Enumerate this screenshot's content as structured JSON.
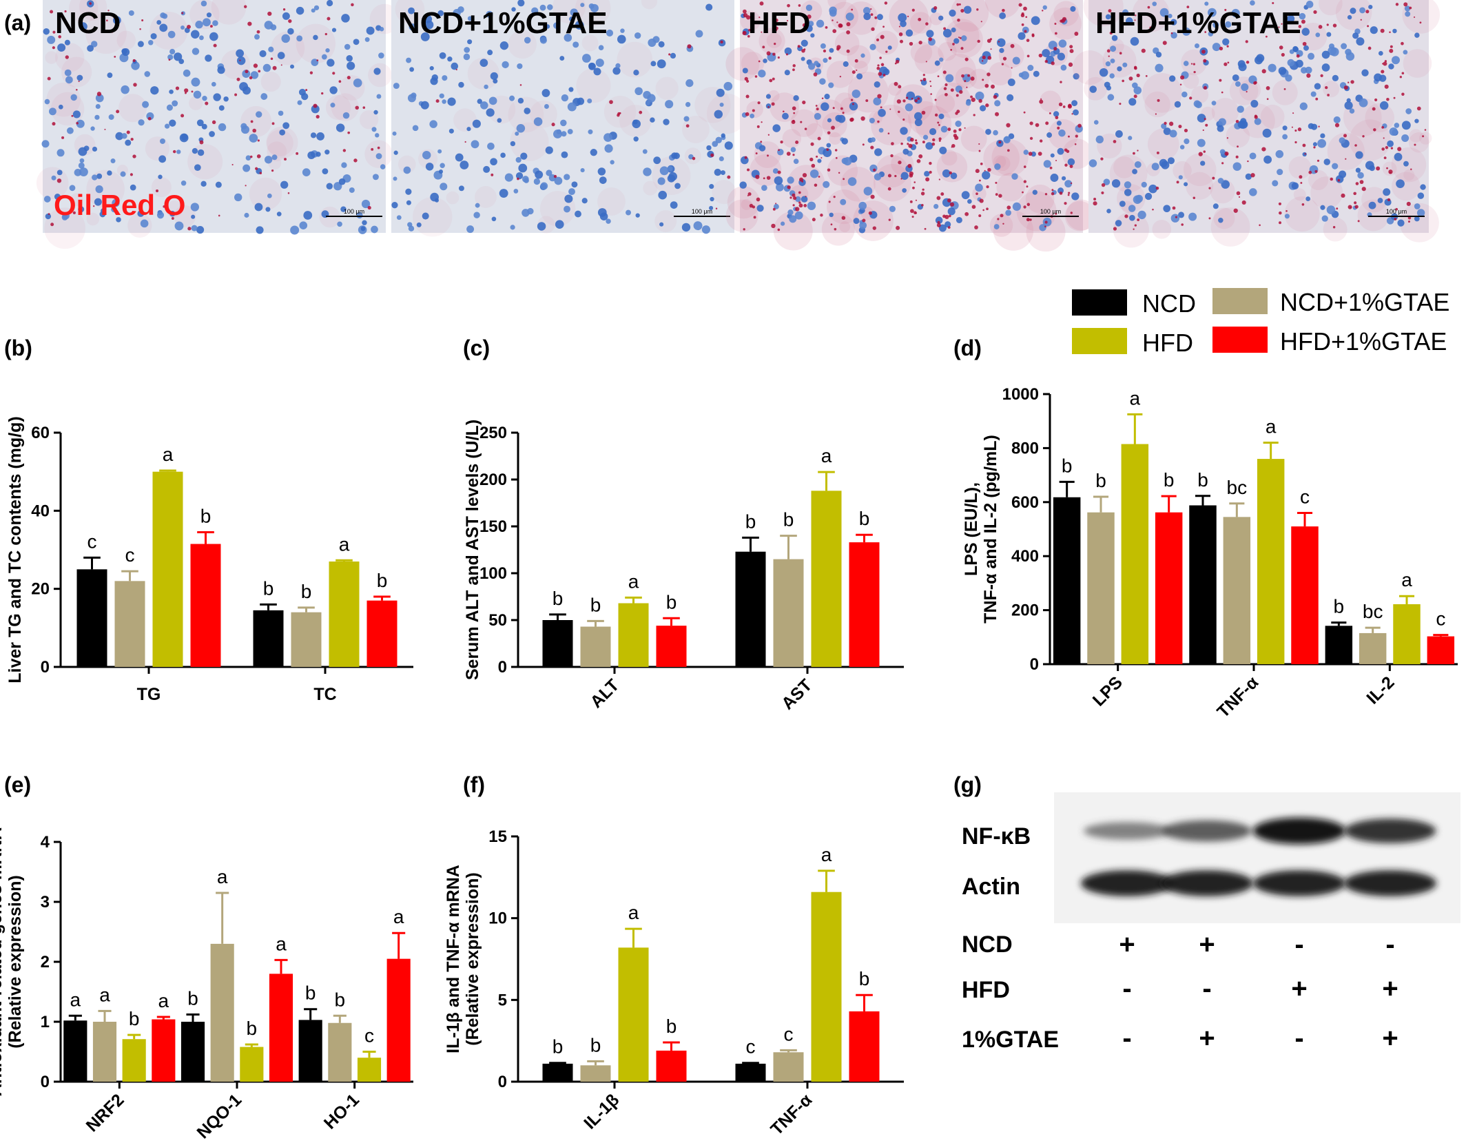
{
  "panel_labels": [
    "(a)",
    "(b)",
    "(c)",
    "(d)",
    "(e)",
    "(f)",
    "(g)"
  ],
  "micrographs": {
    "titles": [
      "NCD",
      "NCD+1%GTAE",
      "HFD",
      "HFD+1%GTAE"
    ],
    "stain_label": "Oil Red O",
    "scale_bar": "100 μm",
    "lipid_density": [
      0.25,
      0.05,
      1.0,
      0.5
    ]
  },
  "legend": {
    "items": [
      {
        "label": "NCD",
        "color": "#000000"
      },
      {
        "label": "NCD+1%GTAE",
        "color": "#B3A67B"
      },
      {
        "label": "HFD",
        "color": "#C2BE00"
      },
      {
        "label": "HFD+1%GTAE",
        "color": "#FF0000"
      }
    ]
  },
  "chart_data": [
    {
      "panel": "(b)",
      "type": "bar",
      "ylabel": "Liver TG and TC contents (mg/g)",
      "ylim": [
        0,
        60
      ],
      "yticks": [
        0,
        20,
        40,
        60
      ],
      "categories": [
        "TG",
        "TC"
      ],
      "series": [
        {
          "name": "NCD",
          "values": [
            25,
            14.5
          ],
          "errors": [
            3,
            1.5
          ],
          "letters": [
            "c",
            "b"
          ]
        },
        {
          "name": "NCD+1%GTAE",
          "values": [
            22,
            14
          ],
          "errors": [
            2.5,
            1.2
          ],
          "letters": [
            "c",
            "b"
          ]
        },
        {
          "name": "HFD",
          "values": [
            50,
            27
          ],
          "errors": [
            0.3,
            0.3
          ],
          "letters": [
            "a",
            "a"
          ]
        },
        {
          "name": "HFD+1%GTAE",
          "values": [
            31.5,
            17
          ],
          "errors": [
            3,
            1
          ],
          "letters": [
            "b",
            "b"
          ]
        }
      ]
    },
    {
      "panel": "(c)",
      "type": "bar",
      "ylabel": "Serum ALT and AST levels (U/L)",
      "ylim": [
        0,
        250
      ],
      "yticks": [
        0,
        50,
        100,
        150,
        200,
        250
      ],
      "categories": [
        "ALT",
        "AST"
      ],
      "series": [
        {
          "name": "NCD",
          "values": [
            50,
            123
          ],
          "errors": [
            6,
            15
          ],
          "letters": [
            "b",
            "b"
          ]
        },
        {
          "name": "NCD+1%GTAE",
          "values": [
            43,
            115
          ],
          "errors": [
            6,
            25
          ],
          "letters": [
            "b",
            "b"
          ]
        },
        {
          "name": "HFD",
          "values": [
            68,
            188
          ],
          "errors": [
            6,
            20
          ],
          "letters": [
            "a",
            "a"
          ]
        },
        {
          "name": "HFD+1%GTAE",
          "values": [
            44,
            133
          ],
          "errors": [
            8,
            8
          ],
          "letters": [
            "b",
            "b"
          ]
        }
      ]
    },
    {
      "panel": "(d)",
      "type": "bar",
      "ylabel_lines": [
        "LPS  (EU/L),",
        "TNF-α and IL-2 (pg/mL)"
      ],
      "ylim": [
        0,
        1000
      ],
      "yticks": [
        0,
        200,
        400,
        600,
        800,
        1000
      ],
      "categories": [
        "LPS",
        "TNF-α",
        "IL-2"
      ],
      "series": [
        {
          "name": "NCD",
          "values": [
            618,
            588,
            142
          ],
          "errors": [
            57,
            35,
            12
          ],
          "letters": [
            "b",
            "b",
            "b"
          ]
        },
        {
          "name": "NCD+1%GTAE",
          "values": [
            562,
            545,
            115
          ],
          "errors": [
            58,
            50,
            20
          ],
          "letters": [
            "b",
            "bc",
            "bc"
          ]
        },
        {
          "name": "HFD",
          "values": [
            815,
            760,
            222
          ],
          "errors": [
            110,
            60,
            30
          ],
          "letters": [
            "a",
            "a",
            "a"
          ]
        },
        {
          "name": "HFD+1%GTAE",
          "values": [
            562,
            510,
            103
          ],
          "errors": [
            60,
            50,
            5
          ],
          "letters": [
            "b",
            "c",
            "c"
          ]
        }
      ]
    },
    {
      "panel": "(e)",
      "type": "bar",
      "ylabel_lines": [
        "Antioxidant-related genes mRNA",
        "(Relative expression)"
      ],
      "ylim": [
        0,
        4
      ],
      "yticks": [
        0,
        1,
        2,
        3,
        4
      ],
      "categories": [
        "NRF2",
        "NQO-1",
        "HO-1"
      ],
      "series": [
        {
          "name": "NCD",
          "values": [
            1.02,
            1.0,
            1.03
          ],
          "errors": [
            0.08,
            0.12,
            0.18
          ],
          "letters": [
            "a",
            "b",
            "b"
          ]
        },
        {
          "name": "NCD+1%GTAE",
          "values": [
            1.0,
            2.3,
            0.98
          ],
          "errors": [
            0.18,
            0.85,
            0.12
          ],
          "letters": [
            "a",
            "a",
            "b"
          ]
        },
        {
          "name": "HFD",
          "values": [
            0.71,
            0.58,
            0.4
          ],
          "errors": [
            0.07,
            0.04,
            0.1
          ],
          "letters": [
            "b",
            "b",
            "c"
          ]
        },
        {
          "name": "HFD+1%GTAE",
          "values": [
            1.04,
            1.8,
            2.05
          ],
          "errors": [
            0.04,
            0.23,
            0.43
          ],
          "letters": [
            "a",
            "a",
            "a"
          ]
        }
      ]
    },
    {
      "panel": "(f)",
      "type": "bar",
      "ylabel_lines": [
        "IL-1β and TNF-α mRNA",
        "(Relative expression)"
      ],
      "ylim": [
        0,
        15
      ],
      "yticks": [
        0,
        5,
        10,
        15
      ],
      "categories": [
        "IL-1β",
        "TNF-α"
      ],
      "series": [
        {
          "name": "NCD",
          "values": [
            1.1,
            1.1
          ],
          "errors": [
            0.05,
            0.05
          ],
          "letters": [
            "b",
            "c"
          ]
        },
        {
          "name": "NCD+1%GTAE",
          "values": [
            1.0,
            1.8
          ],
          "errors": [
            0.25,
            0.12
          ],
          "letters": [
            "b",
            "c"
          ]
        },
        {
          "name": "HFD",
          "values": [
            8.2,
            11.6
          ],
          "errors": [
            1.15,
            1.3
          ],
          "letters": [
            "a",
            "a"
          ]
        },
        {
          "name": "HFD+1%GTAE",
          "values": [
            1.9,
            4.3
          ],
          "errors": [
            0.5,
            1.0
          ],
          "letters": [
            "b",
            "b"
          ]
        }
      ]
    }
  ],
  "western_blot": {
    "bands": [
      {
        "label": "NF-κB",
        "intensity": [
          0.4,
          0.62,
          0.95,
          0.82
        ]
      },
      {
        "label": "Actin",
        "intensity": [
          0.9,
          0.9,
          0.9,
          0.9
        ]
      }
    ],
    "conditions": [
      {
        "label": "NCD",
        "signs": [
          "+",
          "+",
          "-",
          "-"
        ]
      },
      {
        "label": "HFD",
        "signs": [
          "-",
          "-",
          "+",
          "+"
        ]
      },
      {
        "label": "1%GTAE",
        "signs": [
          "-",
          "+",
          "-",
          "+"
        ]
      }
    ]
  }
}
